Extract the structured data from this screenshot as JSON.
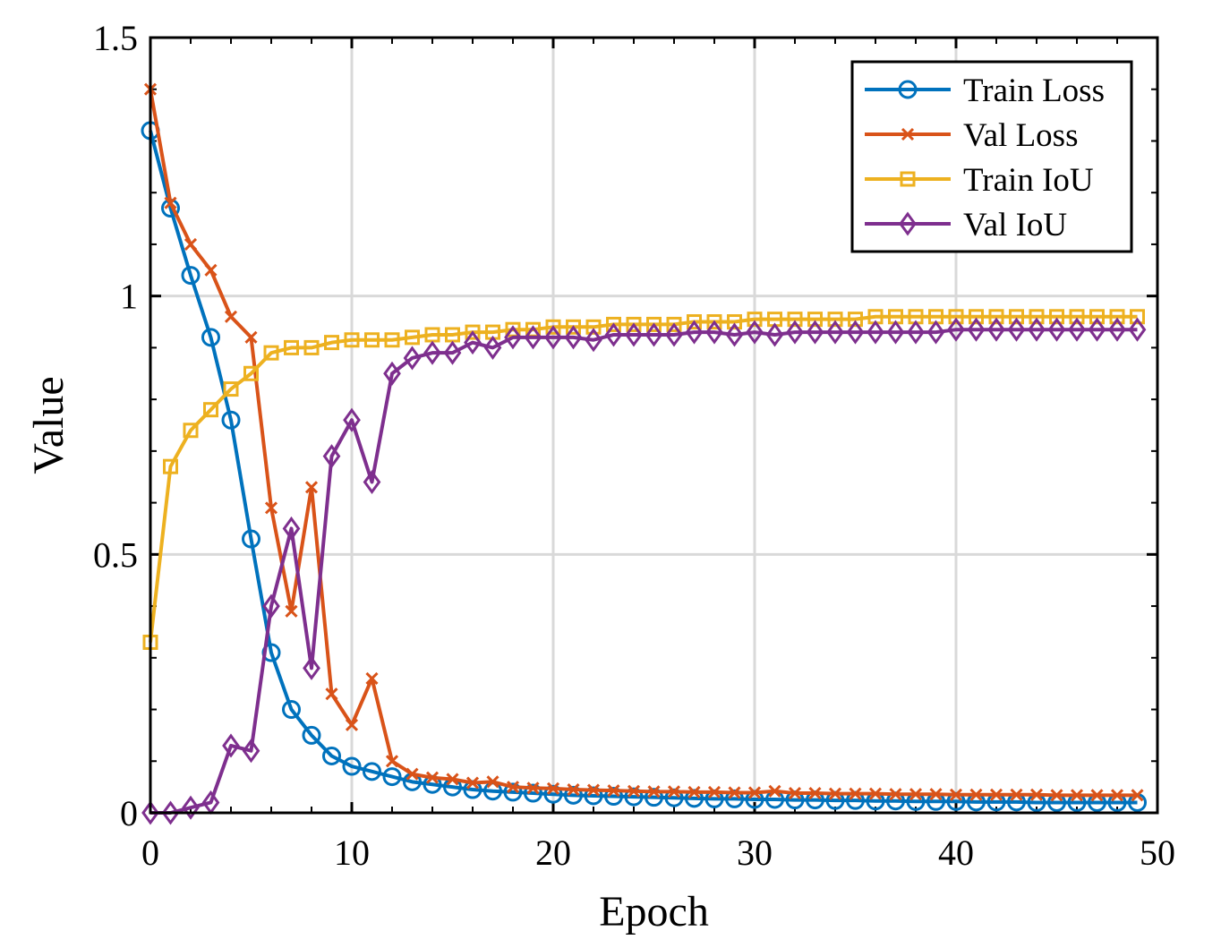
{
  "chart_data": {
    "type": "line",
    "title": "",
    "xlabel": "Epoch",
    "ylabel": "Value",
    "xlim": [
      0,
      50
    ],
    "ylim": [
      0,
      1.5
    ],
    "xticks": [
      0,
      10,
      20,
      30,
      40,
      50
    ],
    "xtick_labels": [
      "0",
      "10",
      "20",
      "30",
      "40",
      "50"
    ],
    "yticks": [
      0,
      0.5,
      1,
      1.5
    ],
    "ytick_labels": [
      "0",
      "0.5",
      "1",
      "1.5"
    ],
    "grid": true,
    "legend_position": "top-right",
    "x": [
      0,
      1,
      2,
      3,
      4,
      5,
      6,
      7,
      8,
      9,
      10,
      11,
      12,
      13,
      14,
      15,
      16,
      17,
      18,
      19,
      20,
      21,
      22,
      23,
      24,
      25,
      26,
      27,
      28,
      29,
      30,
      31,
      32,
      33,
      34,
      35,
      36,
      37,
      38,
      39,
      40,
      41,
      42,
      43,
      44,
      45,
      46,
      47,
      48,
      49
    ],
    "series": [
      {
        "name": "Train Loss",
        "color": "#0072BD",
        "marker": "circle",
        "values": [
          1.32,
          1.17,
          1.04,
          0.92,
          0.76,
          0.53,
          0.31,
          0.2,
          0.15,
          0.11,
          0.09,
          0.08,
          0.07,
          0.06,
          0.055,
          0.05,
          0.045,
          0.042,
          0.04,
          0.038,
          0.036,
          0.034,
          0.033,
          0.032,
          0.031,
          0.03,
          0.029,
          0.028,
          0.027,
          0.027,
          0.026,
          0.026,
          0.025,
          0.025,
          0.024,
          0.024,
          0.023,
          0.023,
          0.022,
          0.022,
          0.022,
          0.021,
          0.021,
          0.021,
          0.02,
          0.02,
          0.02,
          0.02,
          0.02,
          0.02
        ]
      },
      {
        "name": "Val Loss",
        "color": "#D95319",
        "marker": "x",
        "values": [
          1.4,
          1.18,
          1.1,
          1.05,
          0.96,
          0.92,
          0.59,
          0.39,
          0.63,
          0.23,
          0.17,
          0.26,
          0.1,
          0.075,
          0.068,
          0.065,
          0.058,
          0.06,
          0.05,
          0.048,
          0.047,
          0.045,
          0.044,
          0.043,
          0.042,
          0.041,
          0.041,
          0.04,
          0.04,
          0.039,
          0.039,
          0.042,
          0.038,
          0.038,
          0.037,
          0.037,
          0.037,
          0.036,
          0.036,
          0.036,
          0.035,
          0.035,
          0.035,
          0.035,
          0.035,
          0.034,
          0.034,
          0.034,
          0.034,
          0.034
        ]
      },
      {
        "name": "Train IoU",
        "color": "#EDB120",
        "marker": "square",
        "values": [
          0.33,
          0.67,
          0.74,
          0.78,
          0.82,
          0.85,
          0.89,
          0.9,
          0.9,
          0.91,
          0.915,
          0.915,
          0.915,
          0.92,
          0.925,
          0.925,
          0.93,
          0.93,
          0.935,
          0.935,
          0.94,
          0.94,
          0.94,
          0.945,
          0.945,
          0.945,
          0.945,
          0.95,
          0.95,
          0.95,
          0.955,
          0.955,
          0.955,
          0.955,
          0.955,
          0.955,
          0.96,
          0.96,
          0.96,
          0.96,
          0.96,
          0.96,
          0.96,
          0.96,
          0.96,
          0.96,
          0.96,
          0.96,
          0.96,
          0.96
        ]
      },
      {
        "name": "Val IoU",
        "color": "#7E2F8E",
        "marker": "diamond",
        "values": [
          0.0,
          0.0,
          0.01,
          0.02,
          0.13,
          0.12,
          0.4,
          0.55,
          0.28,
          0.69,
          0.76,
          0.64,
          0.85,
          0.88,
          0.89,
          0.89,
          0.91,
          0.9,
          0.92,
          0.92,
          0.92,
          0.92,
          0.915,
          0.925,
          0.925,
          0.925,
          0.925,
          0.93,
          0.93,
          0.925,
          0.93,
          0.925,
          0.93,
          0.93,
          0.93,
          0.93,
          0.93,
          0.93,
          0.93,
          0.93,
          0.935,
          0.935,
          0.935,
          0.935,
          0.935,
          0.935,
          0.935,
          0.935,
          0.935,
          0.935
        ]
      }
    ]
  }
}
